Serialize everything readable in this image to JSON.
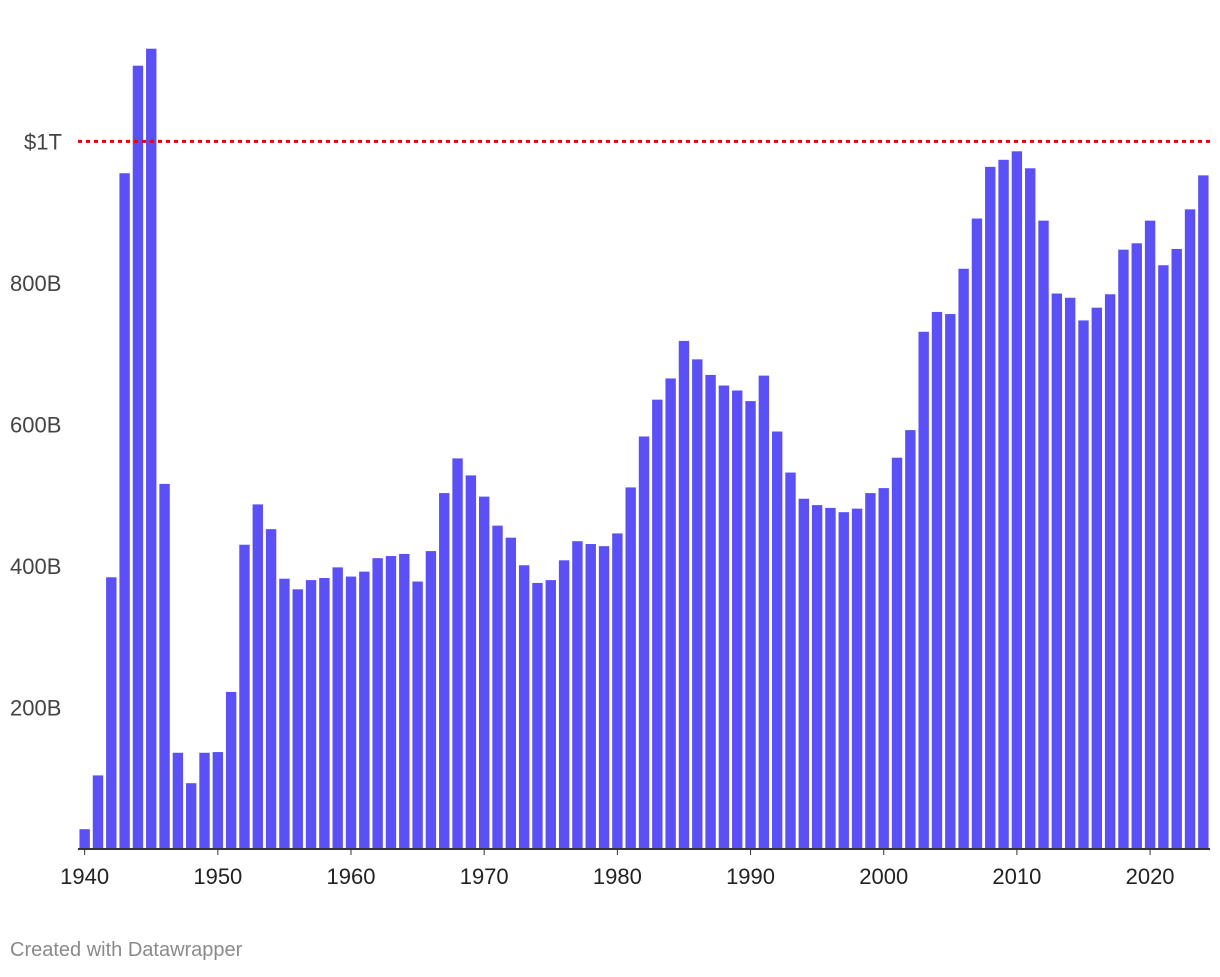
{
  "chart_data": {
    "type": "bar",
    "title": "",
    "xlabel": "",
    "ylabel": "",
    "ylim": [
      0,
      1200
    ],
    "unit": "billions",
    "y_ticks": [
      {
        "value": 200,
        "label": "200B"
      },
      {
        "value": 400,
        "label": "400B"
      },
      {
        "value": 600,
        "label": "600B"
      },
      {
        "value": 800,
        "label": "800B"
      }
    ],
    "x_ticks": [
      {
        "year": 1940,
        "label": "1940"
      },
      {
        "year": 1950,
        "label": "1950"
      },
      {
        "year": 1960,
        "label": "1960"
      },
      {
        "year": 1970,
        "label": "1970"
      },
      {
        "year": 1980,
        "label": "1980"
      },
      {
        "year": 1990,
        "label": "1990"
      },
      {
        "year": 2000,
        "label": "2000"
      },
      {
        "year": 2010,
        "label": "2010"
      },
      {
        "year": 2020,
        "label": "2020"
      }
    ],
    "reference_line": {
      "value": 1000,
      "label": "$1T",
      "color": "#e8000b"
    },
    "bar_color": "#5b50f5",
    "start_year": 1940,
    "values": [
      28,
      104,
      384,
      955,
      1107,
      1131,
      516,
      136,
      93,
      136,
      137,
      222,
      430,
      487,
      452,
      382,
      367,
      380,
      383,
      398,
      385,
      392,
      411,
      414,
      417,
      378,
      421,
      503,
      552,
      528,
      498,
      457,
      440,
      401,
      376,
      380,
      408,
      435,
      431,
      428,
      446,
      511,
      583,
      635,
      665,
      718,
      692,
      670,
      655,
      648,
      633,
      669,
      590,
      532,
      495,
      486,
      482,
      476,
      481,
      503,
      510,
      553,
      592,
      731,
      759,
      756,
      820,
      891,
      964,
      974,
      986,
      962,
      888,
      785,
      779,
      747,
      765,
      784,
      847,
      856,
      888,
      825,
      848,
      904,
      952
    ]
  },
  "footer": {
    "credit": "Created with Datawrapper"
  }
}
